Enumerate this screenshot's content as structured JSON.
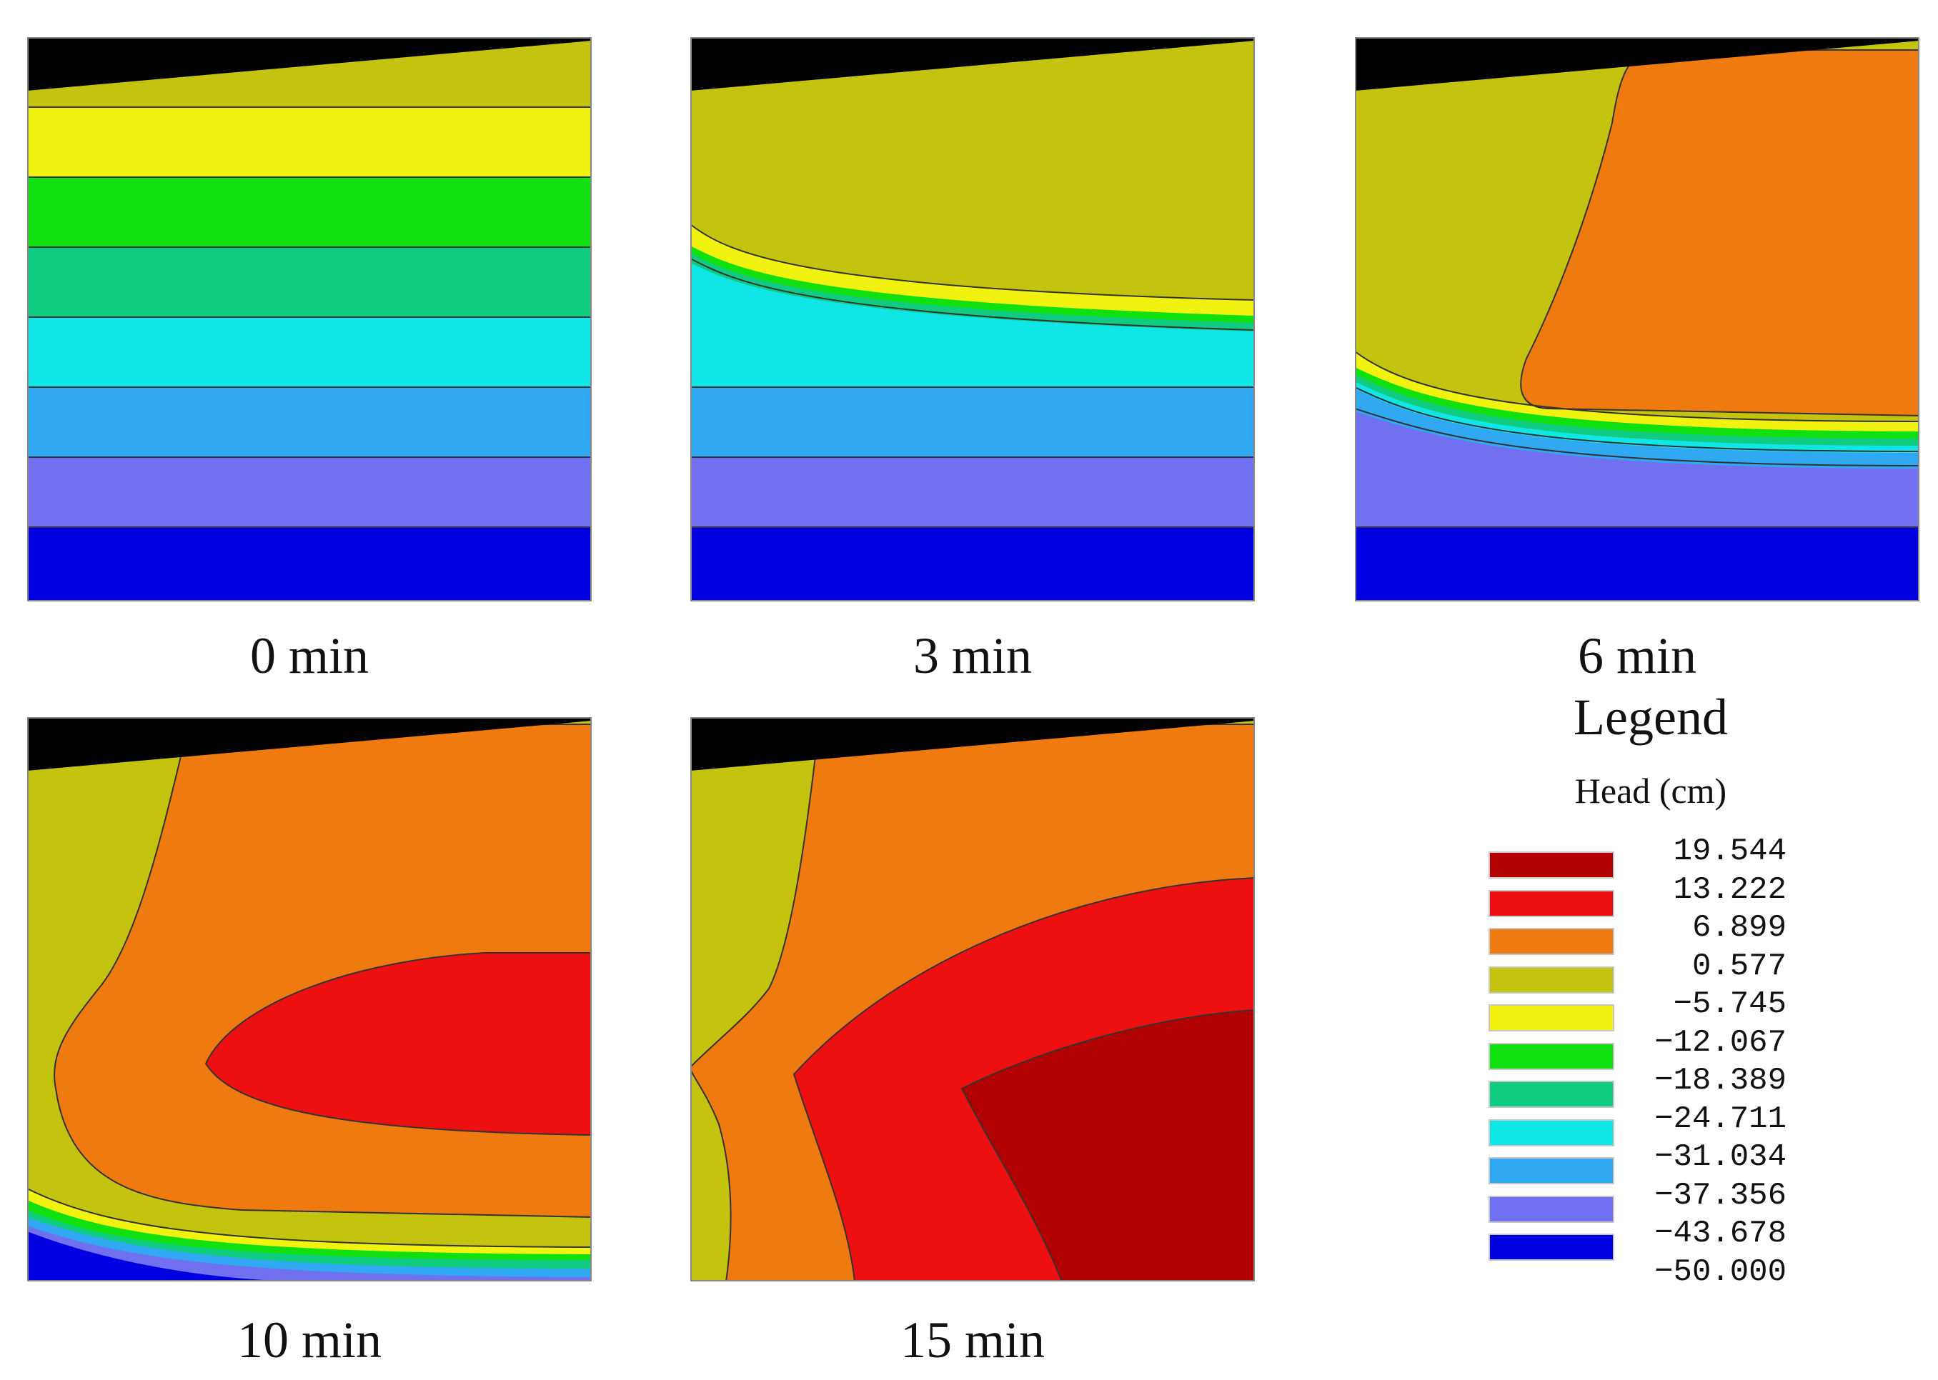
{
  "panels": [
    {
      "id": "p0",
      "caption": "0 min"
    },
    {
      "id": "p3",
      "caption": "3 min"
    },
    {
      "id": "p6",
      "caption": "6 min"
    },
    {
      "id": "p10",
      "caption": "10 min"
    },
    {
      "id": "p15",
      "caption": "15 min"
    }
  ],
  "legend": {
    "title": "Legend",
    "unit": "Head (cm)",
    "ticks": [
      "19.544",
      "13.222",
      "6.899",
      "0.577",
      "−5.745",
      "−12.067",
      "−18.389",
      "−24.711",
      "−31.034",
      "−37.356",
      "−43.678",
      "−50.000"
    ],
    "colors": [
      "#b00000",
      "#ee1010",
      "#ee7a10",
      "#c4c410",
      "#f2f210",
      "#10e010",
      "#10cc80",
      "#10e6e6",
      "#30a8f2",
      "#7070f0",
      "#0000e0"
    ]
  },
  "colors": {
    "top_wedge": "#000000",
    "contour_line": "#333333"
  }
}
